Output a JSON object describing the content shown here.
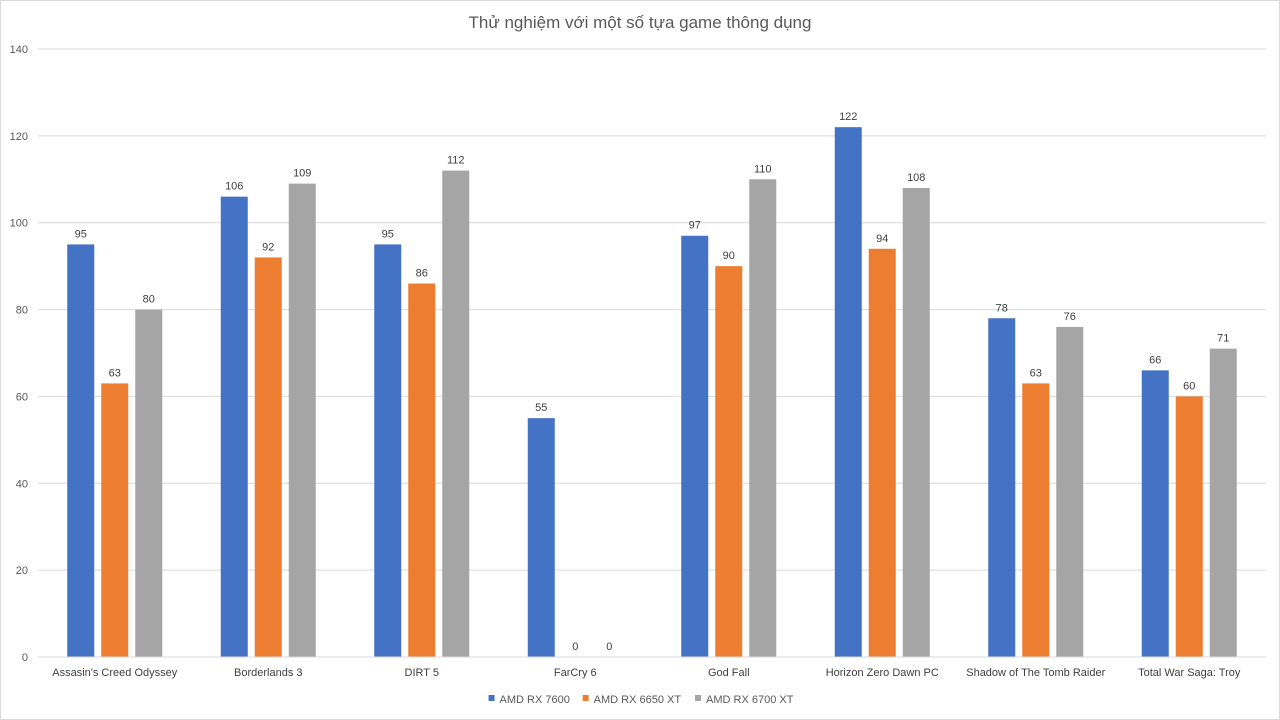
{
  "chart_data": {
    "type": "bar",
    "title": "Thử nghiệm với một số tựa game thông dụng",
    "xlabel": "",
    "ylabel": "",
    "categories": [
      "Assasin's Creed Odyssey",
      "Borderlands 3",
      "DIRT 5",
      "FarCry 6",
      "God Fall",
      "Horizon Zero Dawn PC",
      "Shadow of The Tomb Raider",
      "Total War Saga: Troy"
    ],
    "series": [
      {
        "name": "AMD RX 7600",
        "color": "#4472c4",
        "values": [
          95,
          106,
          95,
          55,
          97,
          122,
          78,
          66
        ]
      },
      {
        "name": "AMD RX 6650 XT",
        "color": "#ed7d31",
        "values": [
          63,
          92,
          86,
          0,
          90,
          94,
          63,
          60
        ]
      },
      {
        "name": "AMD RX 6700 XT",
        "color": "#a5a5a5",
        "values": [
          80,
          109,
          112,
          0,
          110,
          108,
          76,
          71
        ]
      }
    ],
    "ylim": [
      0,
      140
    ],
    "yticks": [
      0,
      20,
      40,
      60,
      80,
      100,
      120,
      140
    ],
    "grid": true,
    "legend_position": "bottom",
    "data_labels": true
  }
}
